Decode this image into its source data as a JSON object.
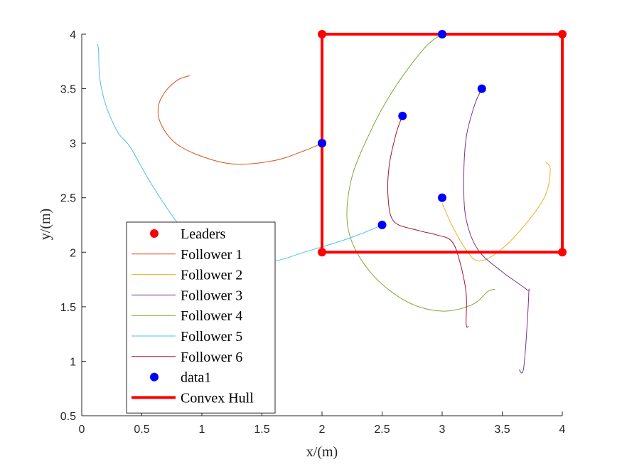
{
  "chart_data": {
    "type": "line",
    "title": "",
    "xlabel": "x/(m)",
    "ylabel": "y/(m)",
    "xlim": [
      0,
      4
    ],
    "ylim": [
      0.5,
      4
    ],
    "xticks": [
      "0",
      "0.5",
      "1",
      "1.5",
      "2",
      "2.5",
      "3",
      "3.5",
      "4"
    ],
    "yticks": [
      "0.5",
      "1",
      "1.5",
      "2",
      "2.5",
      "3",
      "3.5",
      "4"
    ],
    "grid": false,
    "legend_position": "bottom-left",
    "leaders": {
      "name": "Leaders",
      "color": "#ff0000",
      "points": [
        [
          2,
          4
        ],
        [
          3,
          4
        ],
        [
          4,
          4
        ],
        [
          2,
          3
        ],
        [
          2,
          2
        ],
        [
          4,
          2
        ]
      ]
    },
    "followers": [
      {
        "name": "Follower 1",
        "color": "#d95319",
        "points": [
          [
            0.9,
            3.62
          ],
          [
            0.8,
            3.58
          ],
          [
            0.7,
            3.48
          ],
          [
            0.64,
            3.35
          ],
          [
            0.65,
            3.2
          ],
          [
            0.76,
            3.02
          ],
          [
            0.95,
            2.9
          ],
          [
            1.25,
            2.81
          ],
          [
            1.6,
            2.84
          ],
          [
            1.85,
            2.93
          ],
          [
            2.0,
            3.0
          ]
        ]
      },
      {
        "name": "Follower 2",
        "color": "#edb120",
        "points": [
          [
            3.86,
            2.83
          ],
          [
            3.9,
            2.75
          ],
          [
            3.85,
            2.5
          ],
          [
            3.65,
            2.2
          ],
          [
            3.45,
            1.99
          ],
          [
            3.3,
            1.92
          ],
          [
            3.2,
            2.02
          ],
          [
            3.08,
            2.25
          ],
          [
            3.0,
            2.45
          ]
        ]
      },
      {
        "name": "Follower 3",
        "color": "#7e2f8e",
        "points": [
          [
            3.64,
            0.92
          ],
          [
            3.68,
            0.95
          ],
          [
            3.72,
            1.6
          ],
          [
            3.7,
            1.66
          ],
          [
            3.5,
            1.82
          ],
          [
            3.3,
            2.02
          ],
          [
            3.2,
            2.3
          ],
          [
            3.18,
            2.65
          ],
          [
            3.2,
            3.05
          ],
          [
            3.27,
            3.35
          ],
          [
            3.33,
            3.5
          ]
        ]
      },
      {
        "name": "Follower 4",
        "color": "#77ac30",
        "points": [
          [
            3.44,
            1.66
          ],
          [
            3.38,
            1.64
          ],
          [
            3.25,
            1.52
          ],
          [
            3.0,
            1.46
          ],
          [
            2.7,
            1.55
          ],
          [
            2.4,
            1.82
          ],
          [
            2.22,
            2.2
          ],
          [
            2.24,
            2.65
          ],
          [
            2.4,
            3.1
          ],
          [
            2.6,
            3.5
          ],
          [
            2.85,
            3.87
          ],
          [
            3.0,
            4.0
          ]
        ]
      },
      {
        "name": "Follower 5",
        "color": "#4dbeee",
        "points": [
          [
            0.13,
            3.91
          ],
          [
            0.14,
            3.85
          ],
          [
            0.15,
            3.6
          ],
          [
            0.2,
            3.35
          ],
          [
            0.3,
            3.1
          ],
          [
            0.4,
            2.97
          ],
          [
            0.55,
            2.68
          ],
          [
            0.7,
            2.42
          ],
          [
            0.85,
            2.2
          ],
          [
            1.05,
            2.02
          ],
          [
            1.3,
            1.93
          ],
          [
            1.6,
            1.92
          ],
          [
            1.85,
            2.0
          ],
          [
            2.15,
            2.1
          ],
          [
            2.35,
            2.18
          ],
          [
            2.5,
            2.25
          ]
        ]
      },
      {
        "name": "Follower 6",
        "color": "#a2142f",
        "points": [
          [
            3.22,
            1.32
          ],
          [
            3.2,
            1.34
          ],
          [
            3.2,
            1.62
          ],
          [
            3.15,
            1.9
          ],
          [
            3.08,
            2.1
          ],
          [
            2.95,
            2.16
          ],
          [
            2.8,
            2.2
          ],
          [
            2.6,
            2.28
          ],
          [
            2.55,
            2.5
          ],
          [
            2.56,
            2.8
          ],
          [
            2.62,
            3.1
          ],
          [
            2.67,
            3.25
          ]
        ]
      }
    ],
    "data1": {
      "name": "data1",
      "color": "#0000ff",
      "points": [
        [
          3,
          4
        ],
        [
          3.33,
          3.5
        ],
        [
          2.67,
          3.25
        ],
        [
          2,
          3
        ],
        [
          3,
          2.5
        ],
        [
          2.5,
          2.25
        ]
      ]
    },
    "convex_hull": {
      "name": "Convex Hull",
      "color": "#ff0000",
      "points": [
        [
          2,
          2
        ],
        [
          4,
          2
        ],
        [
          4,
          4
        ],
        [
          2,
          4
        ],
        [
          2,
          2
        ]
      ]
    }
  }
}
